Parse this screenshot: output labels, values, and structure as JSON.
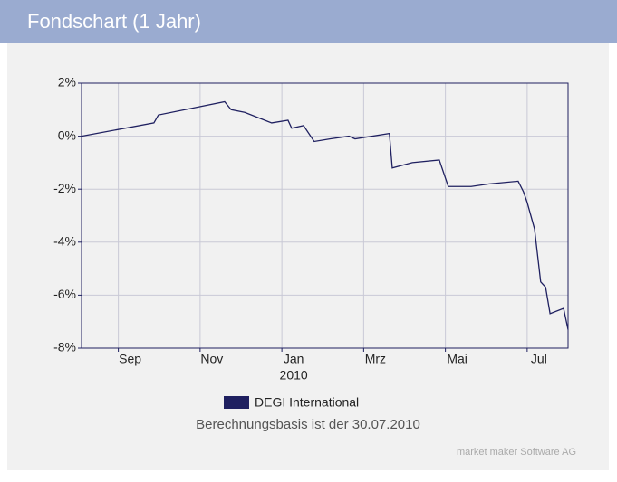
{
  "header": {
    "title": "Fondschart (1 Jahr)"
  },
  "chart_data": {
    "type": "line",
    "x_annotation": "2010",
    "note": "Berechnungsbasis ist der 30.07.2010",
    "credit": "market maker Software AG",
    "xlim": [
      0.1,
      12
    ],
    "xticks": [
      {
        "value": 1,
        "label": "Sep"
      },
      {
        "value": 3,
        "label": "Nov"
      },
      {
        "value": 5,
        "label": "Jan"
      },
      {
        "value": 7,
        "label": "Mrz"
      },
      {
        "value": 9,
        "label": "Mai"
      },
      {
        "value": 11,
        "label": "Jul"
      }
    ],
    "ylim": [
      -8,
      2
    ],
    "yticks": [
      {
        "value": -8,
        "label": "-8%"
      },
      {
        "value": -6,
        "label": "-6%"
      },
      {
        "value": -4,
        "label": "-4%"
      },
      {
        "value": -2,
        "label": "-2%"
      },
      {
        "value": 0,
        "label": "0%"
      },
      {
        "value": 2,
        "label": "2%"
      }
    ],
    "grid": true,
    "series": [
      {
        "name": "DEGI International",
        "color": "#1f2060",
        "x": [
          0.1,
          1.87,
          1.98,
          3.6,
          3.76,
          4.09,
          4.42,
          4.75,
          5.15,
          5.24,
          5.53,
          5.79,
          6.19,
          6.64,
          6.79,
          7.63,
          7.7,
          8.19,
          8.85,
          9.07,
          9.63,
          10.07,
          10.78,
          10.91,
          11.0,
          11.18,
          11.33,
          11.45,
          11.56,
          11.89,
          12.0
        ],
        "values": [
          0.0,
          0.5,
          0.8,
          1.3,
          1.0,
          0.9,
          0.7,
          0.5,
          0.6,
          0.3,
          0.4,
          -0.2,
          -0.1,
          0.0,
          -0.1,
          0.1,
          -1.2,
          -1.0,
          -0.9,
          -1.9,
          -1.9,
          -1.8,
          -1.7,
          -2.1,
          -2.5,
          -3.5,
          -5.5,
          -5.7,
          -6.7,
          -6.5,
          -7.3
        ]
      }
    ]
  }
}
